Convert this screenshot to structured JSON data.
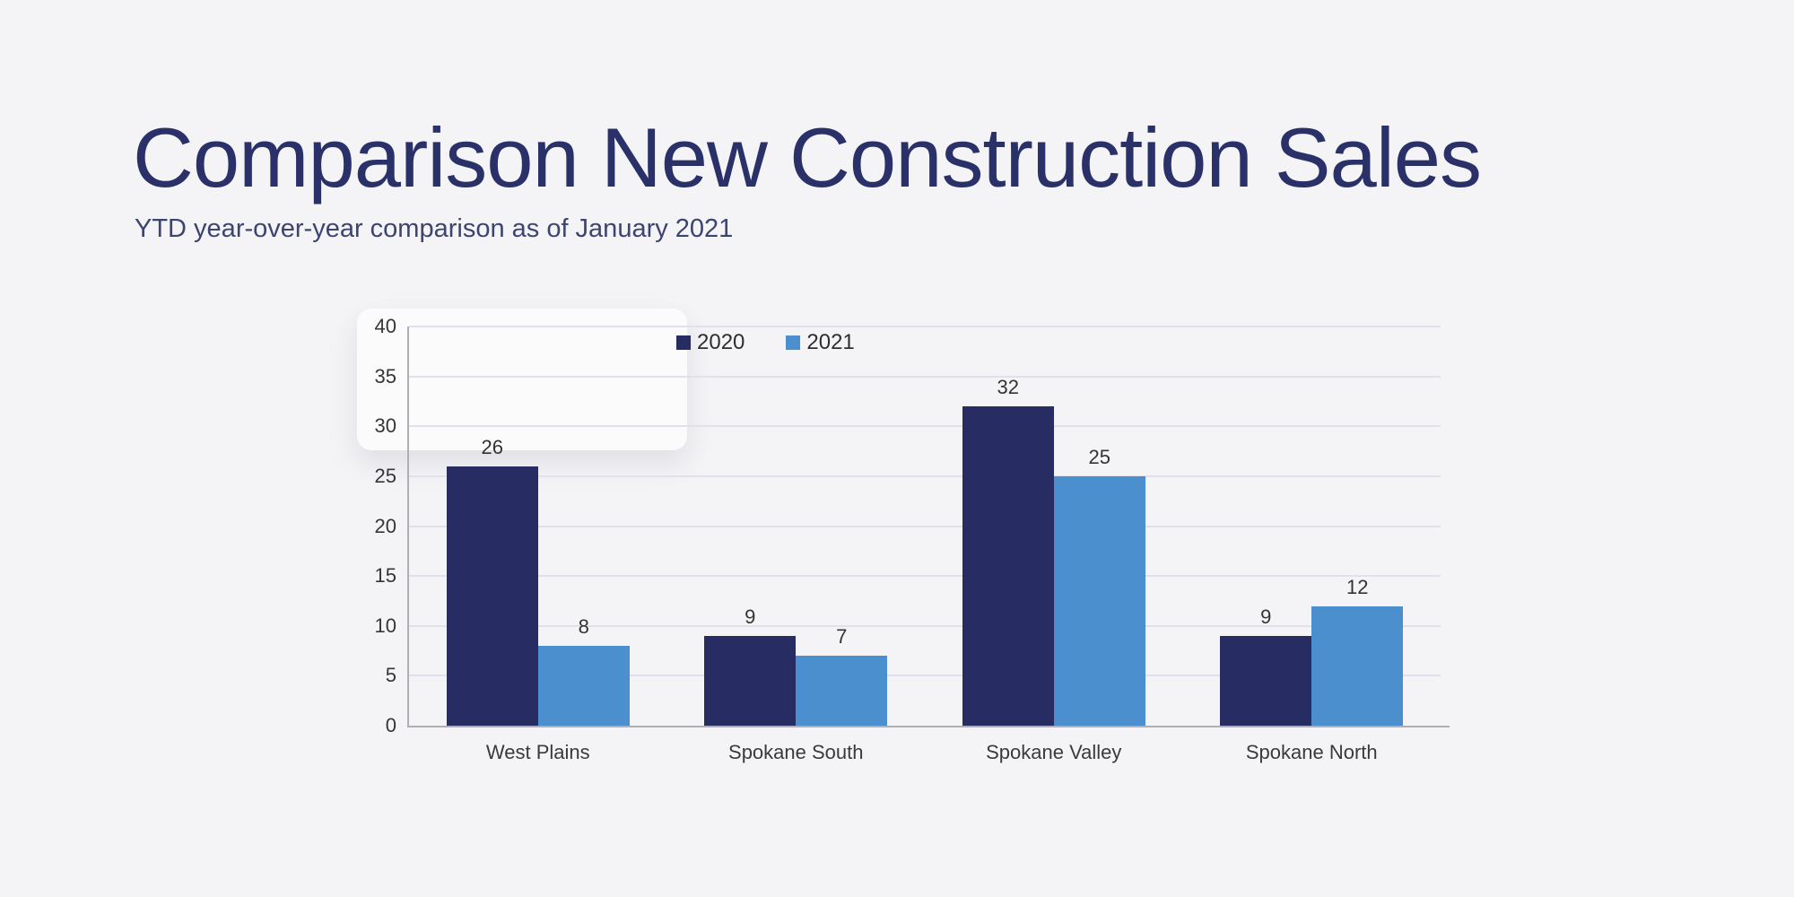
{
  "page": {
    "title": "Comparison New Construction Sales",
    "subtitle": "YTD year-over-year comparison as of January 2021"
  },
  "chart_data": {
    "type": "bar",
    "title": "Comparison New Construction Sales",
    "subtitle": "YTD year-over-year comparison as of January 2021",
    "categories": [
      "West Plains",
      "Spokane South",
      "Spokane Valley",
      "Spokane North"
    ],
    "series": [
      {
        "name": "2020",
        "color": "#272c62",
        "values": [
          26,
          9,
          32,
          9
        ]
      },
      {
        "name": "2021",
        "color": "#4c8fce",
        "values": [
          8,
          7,
          25,
          12
        ]
      }
    ],
    "xlabel": "",
    "ylabel": "",
    "ylim": [
      0,
      40
    ],
    "ytick_step": 5,
    "grid": true,
    "legend_position": "top",
    "data_labels": true
  },
  "colors": {
    "background": "#f4f4f6",
    "title": "#2a3169",
    "subtitle": "#3c4470",
    "gridline": "#e0e1ec",
    "axis": "#aeaeb4",
    "tick_label": "#363636"
  }
}
